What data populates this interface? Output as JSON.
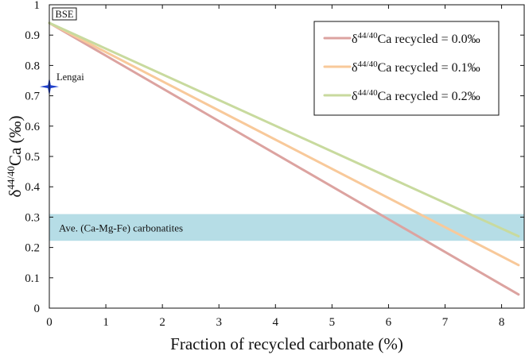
{
  "chart_data": {
    "type": "line",
    "xlabel": "Fraction of recycled carbonate (%)",
    "ylabel_prefix": "δ",
    "ylabel_sup": "44/40",
    "ylabel_suffix": "Ca (‰)",
    "xlim": [
      0,
      8.4
    ],
    "ylim": [
      0,
      1
    ],
    "xticks": [
      0,
      1,
      2,
      3,
      4,
      5,
      6,
      7,
      8
    ],
    "yticks": [
      0,
      0.1,
      0.2,
      0.3,
      0.4,
      0.5,
      0.6,
      0.7,
      0.8,
      0.9,
      1
    ],
    "ytick_labels": [
      "0",
      "0.1",
      "0.2",
      "0.3",
      "0.4",
      "0.5",
      "0.6",
      "0.7",
      "0.8",
      "0.9",
      "1"
    ],
    "series": [
      {
        "name_prefix": "δ",
        "name_sup": "44/40",
        "name_suffix": "Ca recycled = 0.0‰",
        "color": "#dca3a0",
        "x": [
          0,
          8.3
        ],
        "y": [
          0.94,
          0.045
        ]
      },
      {
        "name_prefix": "δ",
        "name_sup": "44/40",
        "name_suffix": "Ca recycled = 0.1‰",
        "color": "#f8c99a",
        "x": [
          0,
          8.3
        ],
        "y": [
          0.94,
          0.142
        ]
      },
      {
        "name_prefix": "δ",
        "name_sup": "44/40",
        "name_suffix": "Ca recycled = 0.2‰",
        "color": "#c8da9e",
        "x": [
          0,
          8.3
        ],
        "y": [
          0.94,
          0.237
        ]
      }
    ],
    "band": {
      "label": "Ave. (Ca-Mg-Fe) carbonatites",
      "y0": 0.222,
      "y1": 0.31,
      "color": "#b6dde6"
    },
    "points": [
      {
        "label": "Lengai",
        "x": 0,
        "y": 0.73,
        "color": "#1e3fcc",
        "marker": "star"
      }
    ],
    "corner_label": "BSE",
    "legend_position": "top-right"
  }
}
